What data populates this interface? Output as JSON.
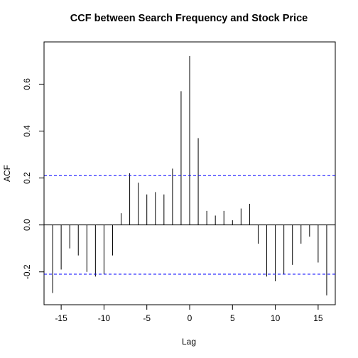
{
  "chart_data": {
    "type": "bar",
    "title": "CCF between Search Frequency and Stock Price",
    "xlabel": "Lag",
    "ylabel": "ACF",
    "xlim": [
      -17,
      17
    ],
    "ylim": [
      -0.34,
      0.78
    ],
    "xticks": [
      -15,
      -10,
      -5,
      0,
      5,
      10,
      15
    ],
    "xtick_labels": [
      "-15",
      "-10",
      "-5",
      "0",
      "5",
      "10",
      "15"
    ],
    "yticks": [
      -0.2,
      0.0,
      0.2,
      0.4,
      0.6
    ],
    "ytick_labels": [
      "-0.2",
      "0.0",
      "0.2",
      "0.4",
      "0.6"
    ],
    "confidence_bound": 0.21,
    "confidence_color": "#0000ff",
    "bar_color": "#000000",
    "lags": [
      -16,
      -15,
      -14,
      -13,
      -12,
      -11,
      -10,
      -9,
      -8,
      -7,
      -6,
      -5,
      -4,
      -3,
      -2,
      -1,
      0,
      1,
      2,
      3,
      4,
      5,
      6,
      7,
      8,
      9,
      10,
      11,
      12,
      13,
      14,
      15,
      16
    ],
    "values": [
      -0.29,
      -0.19,
      -0.1,
      -0.13,
      -0.2,
      -0.22,
      -0.21,
      -0.13,
      0.05,
      0.22,
      0.18,
      0.13,
      0.14,
      0.13,
      0.24,
      0.57,
      0.72,
      0.37,
      0.06,
      0.04,
      0.06,
      0.02,
      0.07,
      0.09,
      -0.08,
      -0.22,
      -0.24,
      -0.21,
      -0.17,
      -0.08,
      -0.05,
      -0.16,
      -0.3
    ]
  }
}
